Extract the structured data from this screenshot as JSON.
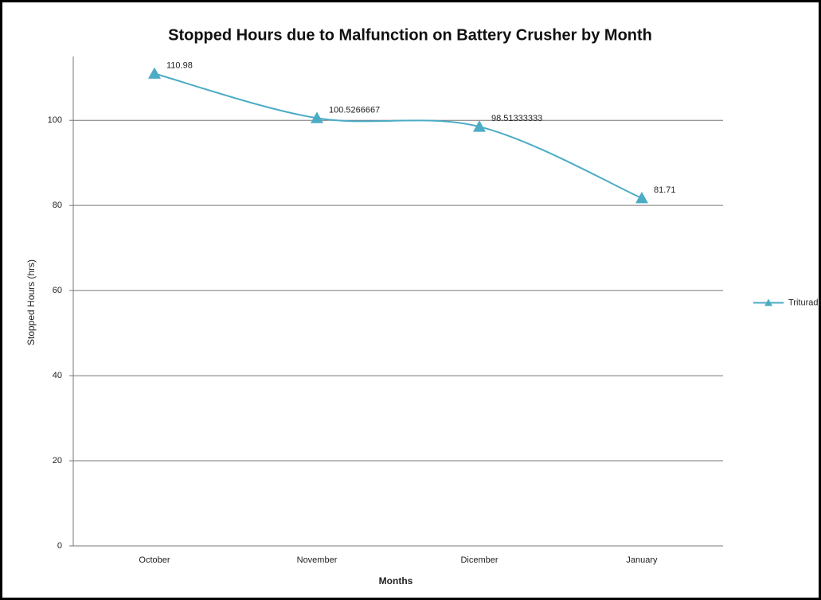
{
  "chart_data": {
    "type": "line",
    "title": "Stopped Hours due to Malfunction on Battery Crusher by Month",
    "x_label": "Months",
    "y_label": "Stopped Hours (hrs)",
    "categories": [
      "October",
      "November",
      "Dicember",
      "January"
    ],
    "series": [
      {
        "name": "Trituradora",
        "color": "#4bacc6",
        "values": [
          110.98,
          100.5266667,
          98.51333333,
          81.71
        ]
      }
    ],
    "ylim": [
      0,
      115
    ],
    "yticks": [
      0,
      20,
      40,
      60,
      80,
      100
    ],
    "grid": true,
    "legend": "right",
    "smooth": true,
    "marker": "triangle",
    "data_labels": true
  }
}
